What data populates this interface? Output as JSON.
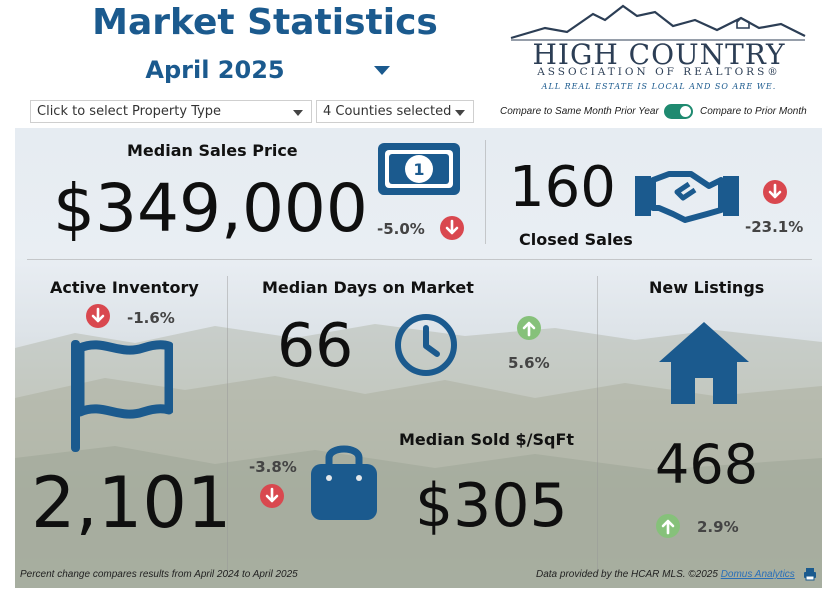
{
  "header": {
    "title": "Market Statistics",
    "month": "April 2025"
  },
  "logo": {
    "name": "HIGH COUNTRY",
    "association": "ASSOCIATION OF REALTORS®",
    "tagline": "ALL REAL ESTATE IS LOCAL AND SO ARE WE."
  },
  "filters": {
    "property_type": "Click to select Property Type",
    "counties": "4 Counties selected",
    "compare_left": "Compare to Same Month Prior Year",
    "compare_right": "Compare to Prior Month"
  },
  "metrics": {
    "median_sales_price": {
      "label": "Median Sales Price",
      "value": "$349,000",
      "change": "-5.0%",
      "direction": "down"
    },
    "closed_sales": {
      "label": "Closed Sales",
      "value": "160",
      "change": "-23.1%",
      "direction": "down"
    },
    "active_inventory": {
      "label": "Active Inventory",
      "value": "2,101",
      "change": "-1.6%",
      "direction": "down"
    },
    "median_days": {
      "label": "Median Days on Market",
      "value": "66",
      "change": "5.6%",
      "direction": "up"
    },
    "new_listings": {
      "label": "New Listings",
      "value": "468",
      "change": "2.9%",
      "direction": "up"
    },
    "median_sqft": {
      "label": "Median Sold $/SqFt",
      "value": "$305",
      "change": "-3.8%",
      "direction": "down"
    }
  },
  "footer": {
    "note": "Percent change compares results from April 2024 to April 2025",
    "source": "Data provided by the HCAR MLS. ©2025",
    "link": "Domus Analytics"
  },
  "colors": {
    "brand_blue": "#1b5a8e",
    "down_red": "#d9484f",
    "up_green": "#86c17a",
    "toggle_green": "#1f8a70"
  },
  "icons": [
    "money-icon",
    "handshake-icon",
    "flag-icon",
    "clock-icon",
    "home-icon",
    "shopping-bag-icon",
    "print-icon",
    "caret-down-icon"
  ]
}
